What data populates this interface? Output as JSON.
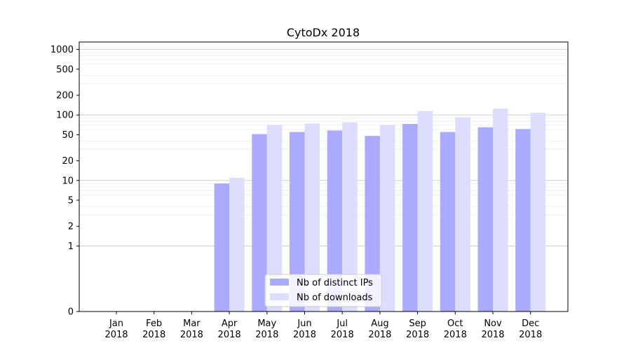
{
  "chart_data": {
    "type": "bar",
    "title": "CytoDx 2018",
    "xlabel": "",
    "ylabel": "",
    "y_scale": "symlog",
    "y_ticks": [
      0,
      1,
      2,
      5,
      10,
      20,
      50,
      100,
      200,
      500,
      1000
    ],
    "y_tick_labels": [
      "0",
      "1",
      "2",
      "5",
      "10",
      "20",
      "50",
      "100",
      "200",
      "500",
      "1000"
    ],
    "ylim": [
      0,
      1300
    ],
    "grid": "horizontal",
    "legend_position": "lower-center",
    "categories": [
      [
        "Jan",
        "2018"
      ],
      [
        "Feb",
        "2018"
      ],
      [
        "Mar",
        "2018"
      ],
      [
        "Apr",
        "2018"
      ],
      [
        "May",
        "2018"
      ],
      [
        "Jun",
        "2018"
      ],
      [
        "Jul",
        "2018"
      ],
      [
        "Aug",
        "2018"
      ],
      [
        "Sep",
        "2018"
      ],
      [
        "Oct",
        "2018"
      ],
      [
        "Nov",
        "2018"
      ],
      [
        "Dec",
        "2018"
      ]
    ],
    "series": [
      {
        "name": "Nb of distinct IPs",
        "color": "#aaaaff",
        "values": [
          0,
          0,
          0,
          9,
          51,
          55,
          58,
          48,
          73,
          55,
          65,
          61
        ]
      },
      {
        "name": "Nb of downloads",
        "color": "#ddddff",
        "values": [
          0,
          0,
          0,
          11,
          70,
          74,
          77,
          70,
          115,
          92,
          125,
          108
        ]
      }
    ]
  }
}
